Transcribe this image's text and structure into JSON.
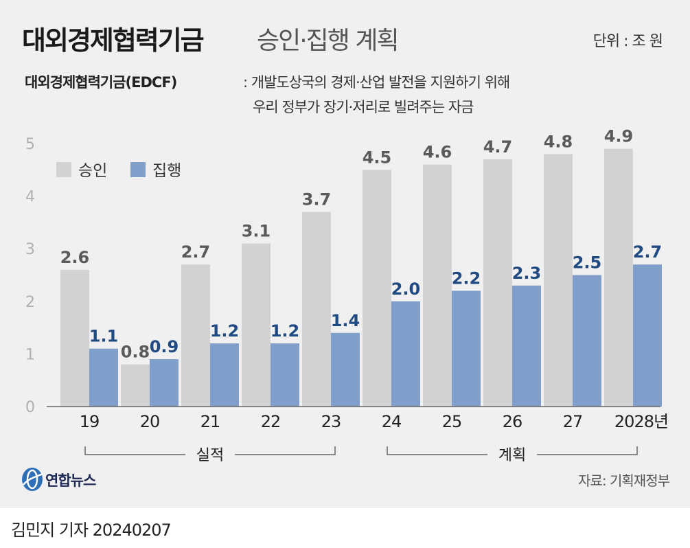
{
  "header": {
    "title_main": "대외경제협력기금",
    "title_sub": "승인·집행 계획",
    "unit": "단위 : 조 원"
  },
  "definition": {
    "term": "대외경제협력기금(EDCF)",
    "line1": ": 개발도상국의 경제·산업 발전을 지원하기 위해",
    "line2": "우리 정부가 장기·저리로 빌려주는 자금"
  },
  "chart_data": {
    "type": "bar",
    "categories": [
      "19",
      "20",
      "21",
      "22",
      "23",
      "24",
      "25",
      "26",
      "27",
      "2028년"
    ],
    "series": [
      {
        "name": "승인",
        "values": [
          2.6,
          0.8,
          2.7,
          3.1,
          3.7,
          4.5,
          4.6,
          4.7,
          4.8,
          4.9
        ],
        "labels": [
          "2.6",
          "0.8",
          "2.7",
          "3.1",
          "3.7",
          "4.5",
          "4.6",
          "4.7",
          "4.8",
          "4.9"
        ],
        "color": "#d2d2d4",
        "label_color": "#5a5a5a"
      },
      {
        "name": "집행",
        "values": [
          1.1,
          0.9,
          1.2,
          1.2,
          1.4,
          2.0,
          2.2,
          2.3,
          2.5,
          2.7
        ],
        "labels": [
          "1.1",
          "0.9",
          "1.2",
          "1.2",
          "1.4",
          "2.0",
          "2.2",
          "2.3",
          "2.5",
          "2.7"
        ],
        "color": "#7f9fca",
        "label_color": "#1f4a82"
      }
    ],
    "y_ticks": [
      "0",
      "1",
      "2",
      "3",
      "4",
      "5"
    ],
    "ylim": [
      0,
      5
    ],
    "grid": false,
    "legend": "top-left",
    "groups": [
      {
        "label": "실적",
        "from": 0,
        "to": 4
      },
      {
        "label": "계획",
        "from": 5,
        "to": 9
      }
    ]
  },
  "footer": {
    "logo_text": "연합뉴스",
    "source": "자료: 기획재정부",
    "credit": "김민지 기자  20240207"
  }
}
